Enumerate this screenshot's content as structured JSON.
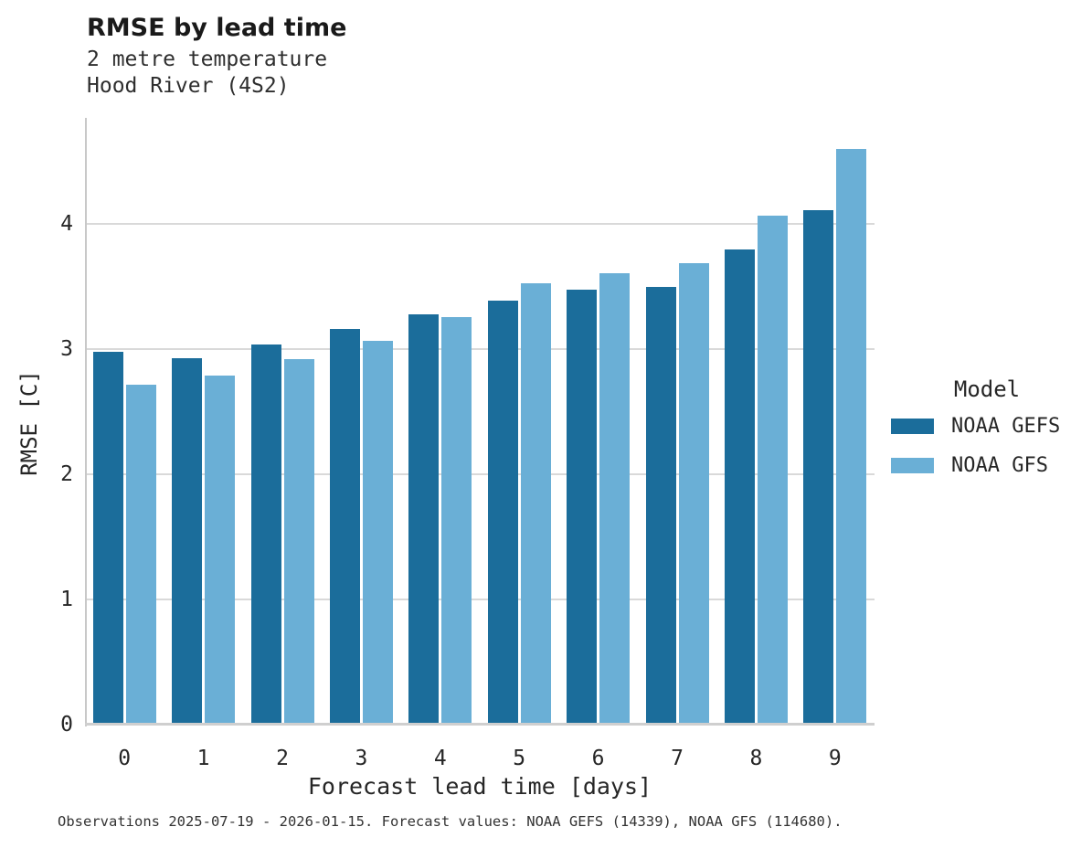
{
  "header": {
    "title": "RMSE by lead time",
    "subtitle_line1": "2 metre temperature",
    "subtitle_line2": "Hood River (4S2)"
  },
  "chart_data": {
    "type": "bar",
    "title": "RMSE by lead time",
    "subtitle_lines": [
      "2 metre temperature",
      "Hood River (4S2)"
    ],
    "categories": [
      "0",
      "1",
      "2",
      "3",
      "4",
      "5",
      "6",
      "7",
      "8",
      "9"
    ],
    "series": [
      {
        "name": "NOAA GEFS",
        "color": "#1b6d9b",
        "values": [
          2.98,
          2.93,
          3.04,
          3.16,
          3.28,
          3.39,
          3.48,
          3.5,
          3.8,
          4.11
        ]
      },
      {
        "name": "NOAA GFS",
        "color": "#6aafd6",
        "values": [
          2.72,
          2.79,
          2.92,
          3.07,
          3.26,
          3.53,
          3.61,
          3.69,
          4.07,
          4.6
        ]
      }
    ],
    "xlabel": "Forecast lead time [days]",
    "ylabel": "RMSE [C]",
    "ylim": [
      0,
      4.85
    ],
    "yticks": [
      0,
      1,
      2,
      3,
      4
    ],
    "grid": true,
    "legend": {
      "title": "Model",
      "position": "right"
    }
  },
  "colors": {
    "gefs_bar": "#1b6d9b",
    "gfs_bar": "#6aafd6",
    "gridline": "#d9d9d9",
    "axis_spine": "#c8c8c8",
    "text": "#262626",
    "title_text": "#1a1a1a"
  },
  "footer": {
    "caption": "Observations 2025-07-19 - 2026-01-15. Forecast values: NOAA GEFS (14339), NOAA GFS (114680)."
  }
}
